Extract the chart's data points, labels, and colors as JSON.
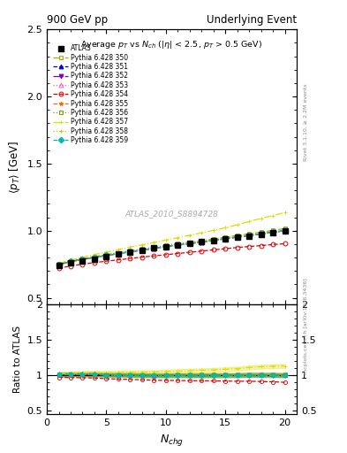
{
  "title_left": "900 GeV pp",
  "title_right": "Underlying Event",
  "watermark": "ATLAS_2010_S8894728",
  "ylim_main": [
    0.45,
    2.5
  ],
  "xlim": [
    0,
    21
  ],
  "x_ticks": [
    0,
    5,
    10,
    15,
    20
  ],
  "y_ticks_main": [
    0.5,
    1.0,
    1.5,
    2.0,
    2.5
  ],
  "y_ticks_ratio": [
    0.5,
    1.0,
    1.5,
    2.0
  ],
  "nch_atlas": [
    1,
    2,
    3,
    4,
    5,
    6,
    7,
    8,
    9,
    10,
    11,
    12,
    13,
    14,
    15,
    16,
    17,
    18,
    19,
    20
  ],
  "pt_atlas": [
    0.74,
    0.76,
    0.775,
    0.79,
    0.81,
    0.825,
    0.84,
    0.855,
    0.87,
    0.882,
    0.893,
    0.905,
    0.916,
    0.928,
    0.94,
    0.952,
    0.96,
    0.972,
    0.985,
    1.0
  ],
  "pt_atlas_err": [
    0.012,
    0.009,
    0.008,
    0.007,
    0.006,
    0.006,
    0.006,
    0.006,
    0.006,
    0.006,
    0.006,
    0.006,
    0.006,
    0.007,
    0.007,
    0.008,
    0.009,
    0.01,
    0.012,
    0.018
  ],
  "series": [
    {
      "label": "Pythia 6.428 350",
      "color": "#aaaa00",
      "linestyle": "-.",
      "marker": "s",
      "mfc": "none",
      "pt": [
        0.752,
        0.774,
        0.791,
        0.807,
        0.822,
        0.836,
        0.85,
        0.864,
        0.878,
        0.891,
        0.903,
        0.915,
        0.926,
        0.938,
        0.951,
        0.964,
        0.977,
        0.99,
        1.002,
        1.016
      ],
      "band": true
    },
    {
      "label": "Pythia 6.428 351",
      "color": "#0000dd",
      "linestyle": "--",
      "marker": "^",
      "mfc": "#0000dd",
      "pt": [
        0.747,
        0.769,
        0.786,
        0.801,
        0.815,
        0.829,
        0.842,
        0.855,
        0.868,
        0.881,
        0.893,
        0.904,
        0.915,
        0.927,
        0.94,
        0.952,
        0.964,
        0.976,
        0.988,
        1.0
      ],
      "band": false
    },
    {
      "label": "Pythia 6.428 352",
      "color": "#7700cc",
      "linestyle": "-.",
      "marker": "v",
      "mfc": "#7700cc",
      "pt": [
        0.747,
        0.769,
        0.786,
        0.801,
        0.815,
        0.829,
        0.842,
        0.855,
        0.868,
        0.881,
        0.893,
        0.904,
        0.915,
        0.927,
        0.94,
        0.952,
        0.964,
        0.976,
        0.988,
        1.0
      ],
      "band": false
    },
    {
      "label": "Pythia 6.428 353",
      "color": "#ff55cc",
      "linestyle": ":",
      "marker": "^",
      "mfc": "none",
      "pt": [
        0.747,
        0.769,
        0.786,
        0.801,
        0.815,
        0.829,
        0.842,
        0.855,
        0.868,
        0.881,
        0.893,
        0.904,
        0.915,
        0.927,
        0.94,
        0.952,
        0.964,
        0.976,
        0.988,
        1.0
      ],
      "band": false
    },
    {
      "label": "Pythia 6.428 354",
      "color": "#dd0000",
      "linestyle": "--",
      "marker": "o",
      "mfc": "none",
      "pt": [
        0.72,
        0.737,
        0.75,
        0.762,
        0.773,
        0.783,
        0.793,
        0.803,
        0.812,
        0.821,
        0.83,
        0.839,
        0.848,
        0.857,
        0.866,
        0.875,
        0.882,
        0.889,
        0.897,
        0.903
      ],
      "band": false
    },
    {
      "label": "Pythia 6.428 355",
      "color": "#ff6600",
      "linestyle": "--",
      "marker": "*",
      "mfc": "#ff6600",
      "pt": [
        0.747,
        0.769,
        0.786,
        0.801,
        0.815,
        0.829,
        0.842,
        0.855,
        0.868,
        0.881,
        0.893,
        0.904,
        0.915,
        0.927,
        0.94,
        0.952,
        0.964,
        0.976,
        0.988,
        1.0
      ],
      "band": false
    },
    {
      "label": "Pythia 6.428 356",
      "color": "#779900",
      "linestyle": ":",
      "marker": "s",
      "mfc": "none",
      "pt": [
        0.751,
        0.773,
        0.789,
        0.804,
        0.818,
        0.831,
        0.844,
        0.857,
        0.87,
        0.882,
        0.894,
        0.906,
        0.917,
        0.929,
        0.942,
        0.954,
        0.966,
        0.978,
        0.99,
        1.001
      ],
      "band": true
    },
    {
      "label": "Pythia 6.428 357",
      "color": "#dddd00",
      "linestyle": "-.",
      "marker": "+",
      "mfc": "#dddd00",
      "pt": [
        0.756,
        0.782,
        0.802,
        0.822,
        0.841,
        0.859,
        0.877,
        0.895,
        0.912,
        0.93,
        0.948,
        0.966,
        0.984,
        1.002,
        1.022,
        1.044,
        1.068,
        1.092,
        1.113,
        1.135
      ],
      "band": true
    },
    {
      "label": "Pythia 6.428 358",
      "color": "#aad400",
      "linestyle": ":",
      "marker": "+",
      "mfc": "#aad400",
      "pt": [
        0.749,
        0.771,
        0.787,
        0.802,
        0.816,
        0.83,
        0.843,
        0.856,
        0.869,
        0.881,
        0.893,
        0.905,
        0.916,
        0.928,
        0.941,
        0.953,
        0.965,
        0.977,
        0.989,
        1.0
      ],
      "band": true
    },
    {
      "label": "Pythia 6.428 359",
      "color": "#00bbaa",
      "linestyle": "--",
      "marker": "D",
      "mfc": "#00bbaa",
      "pt": [
        0.749,
        0.771,
        0.787,
        0.802,
        0.817,
        0.83,
        0.844,
        0.857,
        0.87,
        0.882,
        0.894,
        0.906,
        0.917,
        0.929,
        0.942,
        0.954,
        0.966,
        0.978,
        0.99,
        1.001
      ],
      "band": true
    }
  ]
}
